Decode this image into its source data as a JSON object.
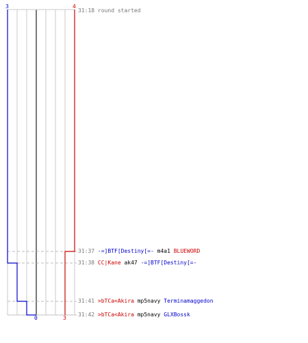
{
  "score": {
    "blue_start": "3",
    "red_start": "4",
    "blue_end": "0",
    "red_end": "3"
  },
  "colors": {
    "blue": "#0000cc",
    "red": "#cc0000",
    "grid": "#c8c8c8",
    "center": "#777777"
  },
  "events": [
    {
      "time": "31:18",
      "type": "info",
      "text": "round started"
    },
    {
      "time": "31:37",
      "type": "kill",
      "killer": "-=]BTF[Destiny[=-",
      "killer_team": "blue",
      "weapon": "m4a1",
      "victim": "BLUEWORD",
      "victim_team": "red"
    },
    {
      "time": "31:38",
      "type": "kill",
      "killer": "CC|Kane",
      "killer_team": "red",
      "weapon": "ak47",
      "victim": "-=]BTF[Destiny[=-",
      "victim_team": "blue"
    },
    {
      "time": "31:41",
      "type": "kill",
      "killer": ">bTCa<Akira",
      "killer_team": "red",
      "weapon": "mp5navy",
      "victim": "Terminamaggedon",
      "victim_team": "blue"
    },
    {
      "time": "31:42",
      "type": "kill",
      "killer": ">bTCa<Akira",
      "killer_team": "red",
      "weapon": "mp5navy",
      "victim": "GLXBossk",
      "victim_team": "blue"
    }
  ]
}
